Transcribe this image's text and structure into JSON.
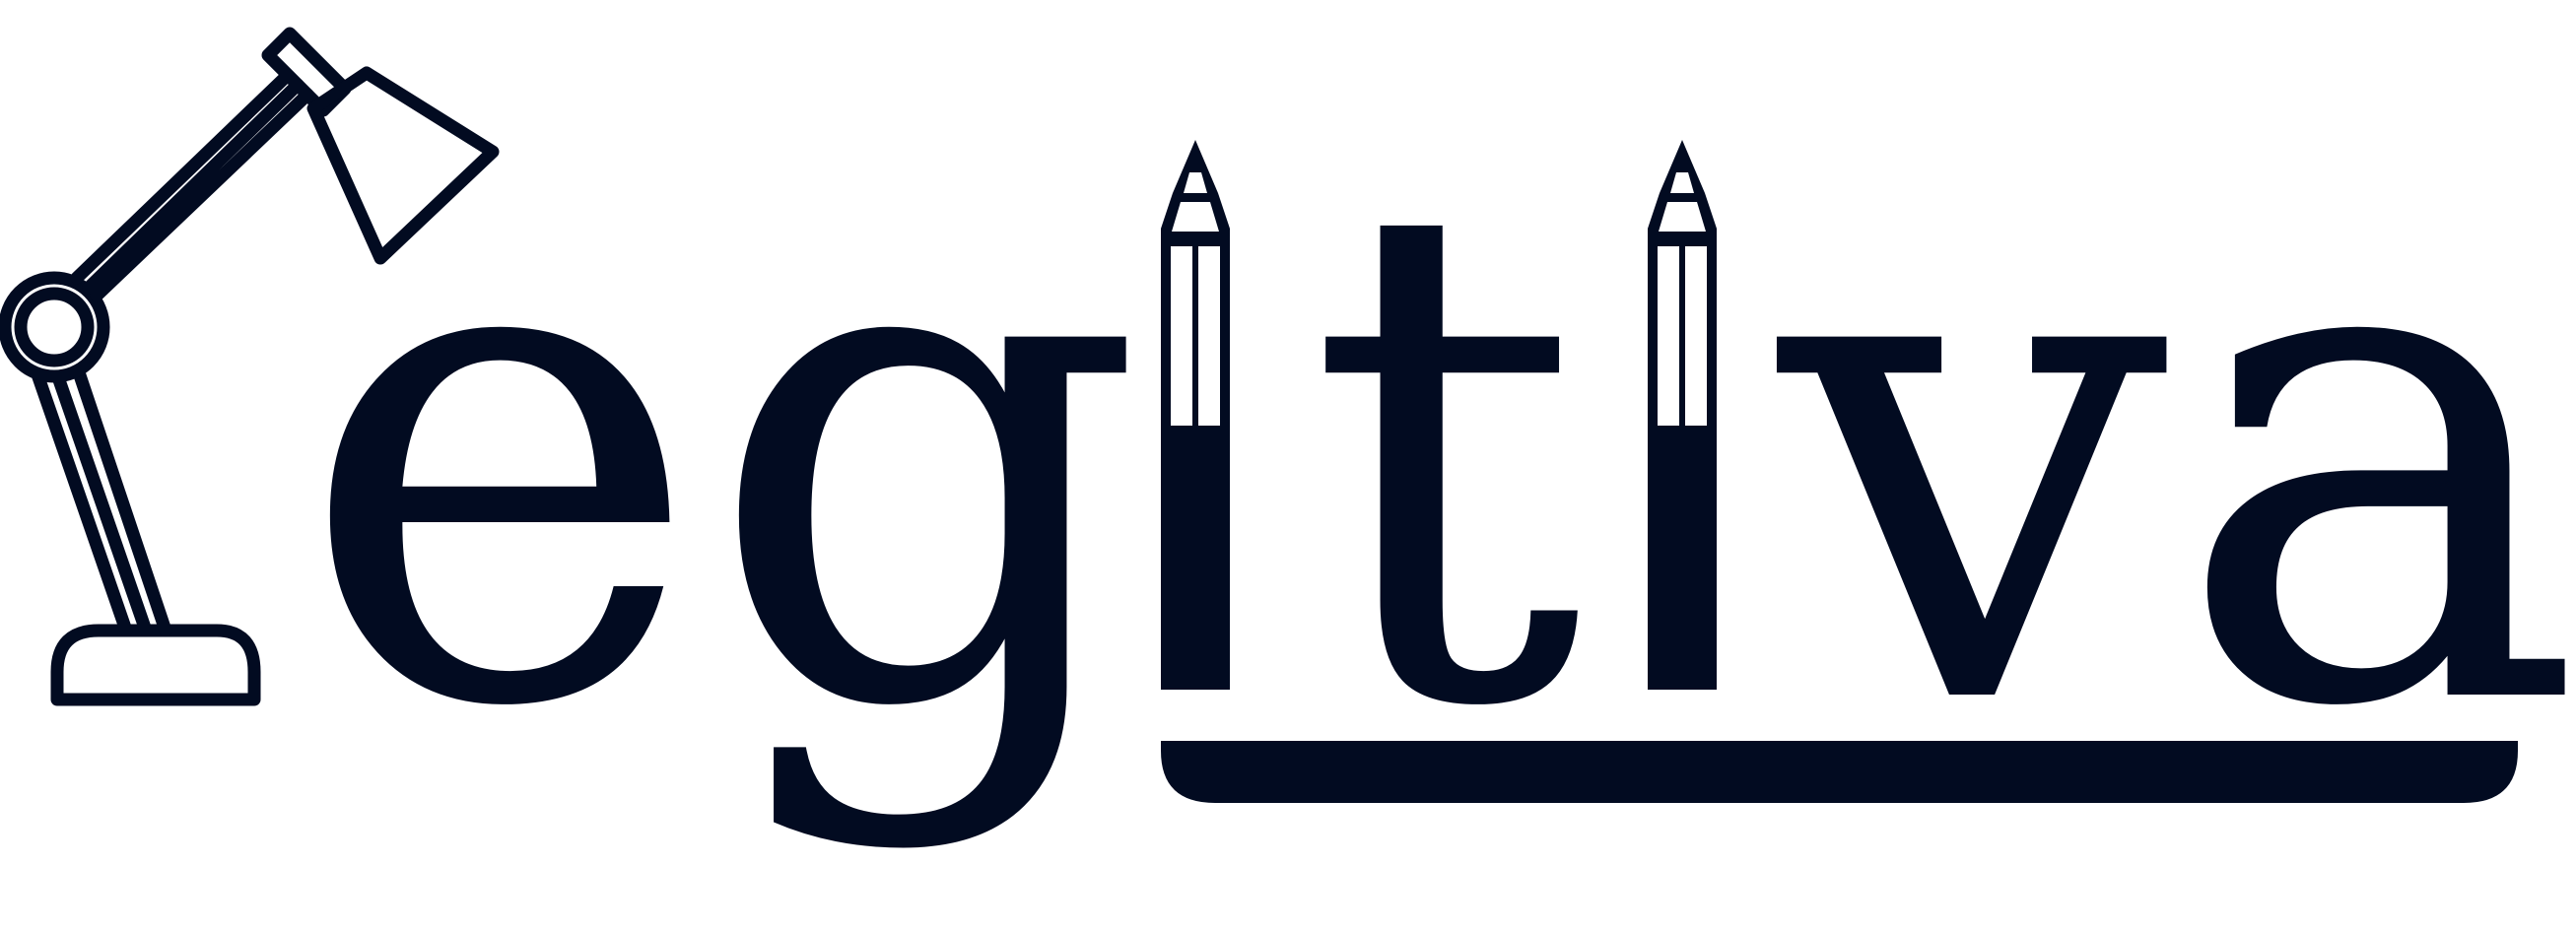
{
  "logo": {
    "wordmark": "egitiva",
    "letters": [
      "e",
      "g",
      "i",
      "t",
      "i",
      "v",
      "a"
    ],
    "icons": [
      "desk-lamp-icon",
      "pencil-icon",
      "pencil-icon",
      "underline-bar"
    ],
    "colors": {
      "ink": "#020b21",
      "background": "#ffffff"
    }
  }
}
